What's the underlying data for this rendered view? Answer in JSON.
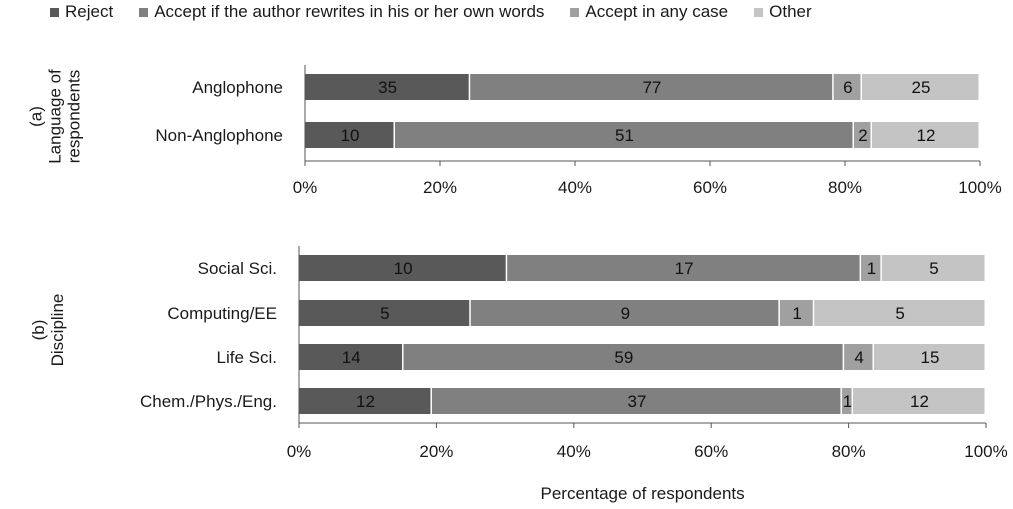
{
  "chart_data": [
    {
      "type": "bar",
      "orientation": "horizontal",
      "stacked": "percent",
      "panel_label": "(a)",
      "ylabel": "Language of respondents",
      "categories": [
        "Anglophone",
        "Non-Anglophone"
      ],
      "series": [
        {
          "name": "Reject",
          "values": [
            35,
            10
          ]
        },
        {
          "name": "Accept if the author rewrites in his or her own words",
          "values": [
            77,
            51
          ]
        },
        {
          "name": "Accept in any case",
          "values": [
            6,
            2
          ]
        },
        {
          "name": "Other",
          "values": [
            25,
            12
          ]
        }
      ],
      "xticks": [
        "0%",
        "20%",
        "40%",
        "60%",
        "80%",
        "100%"
      ],
      "xlim": [
        0,
        100
      ]
    },
    {
      "type": "bar",
      "orientation": "horizontal",
      "stacked": "percent",
      "panel_label": "(b)",
      "ylabel": "Discipline",
      "categories": [
        "Social Sci.",
        "Computing/EE",
        "Life Sci.",
        "Chem./Phys./Eng."
      ],
      "series": [
        {
          "name": "Reject",
          "values": [
            10,
            5,
            14,
            12
          ]
        },
        {
          "name": "Accept if the author rewrites in his or her own words",
          "values": [
            17,
            9,
            59,
            37
          ]
        },
        {
          "name": "Accept in any case",
          "values": [
            1,
            1,
            4,
            1
          ]
        },
        {
          "name": "Other",
          "values": [
            5,
            5,
            15,
            12
          ]
        }
      ],
      "xticks": [
        "0%",
        "20%",
        "40%",
        "60%",
        "80%",
        "100%"
      ],
      "xlim": [
        0,
        100
      ],
      "xlabel": "Percentage of respondents"
    }
  ],
  "legend": {
    "placement": "top",
    "items": [
      {
        "label": "Reject",
        "color": "#595959"
      },
      {
        "label": "Accept if the author rewrites in his or her own words",
        "color": "#808080"
      },
      {
        "label": "Accept in any case",
        "color": "#a0a0a0"
      },
      {
        "label": "Other",
        "color": "#c4c4c4"
      }
    ]
  },
  "colors": {
    "series": [
      "#595959",
      "#808080",
      "#a0a0a0",
      "#c4c4c4"
    ],
    "axis": "#555555"
  },
  "labels": {
    "panel_a_line1": "(a)",
    "panel_a_line2": "Language of",
    "panel_a_line3": "respondents",
    "panel_b_line1": "(b)",
    "panel_b_line2": "Discipline",
    "xlabel": "Percentage of respondents"
  }
}
